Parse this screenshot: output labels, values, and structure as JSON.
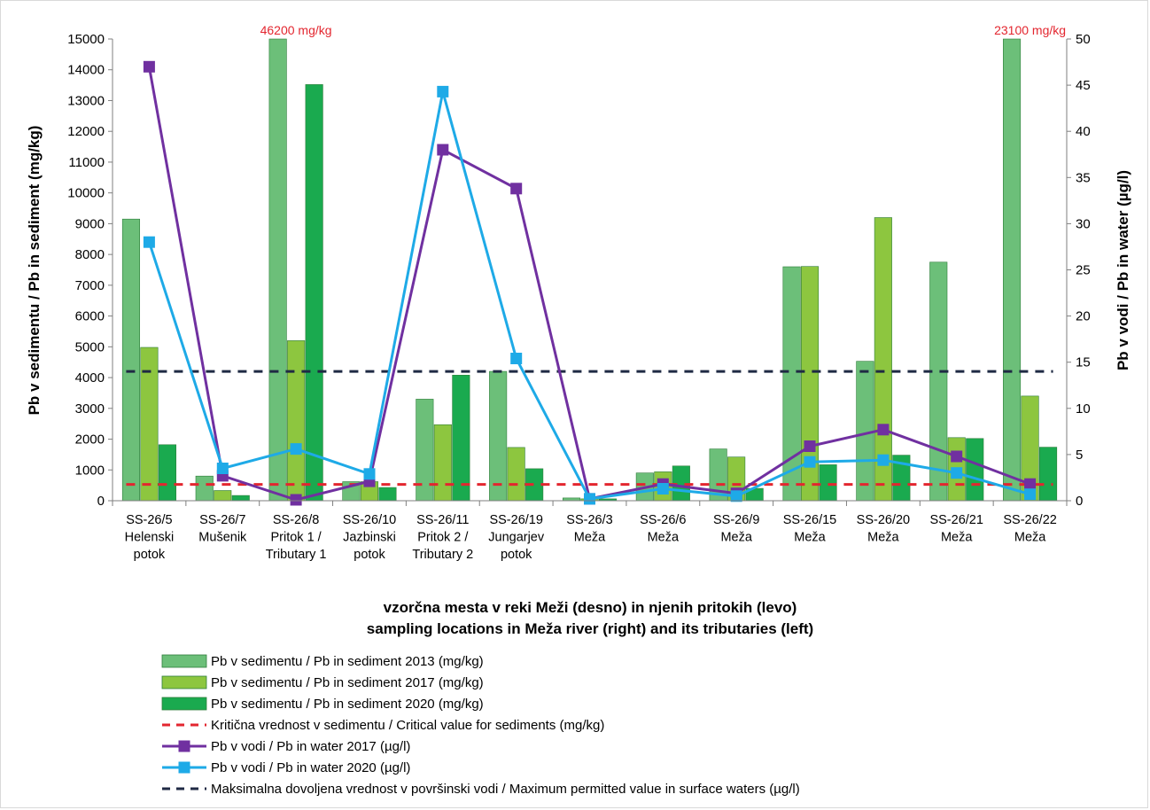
{
  "chart_data": {
    "type": "bar",
    "categories": [
      [
        "SS-26/5",
        "Helenski",
        "potok"
      ],
      [
        "SS-26/7",
        "Mušenik"
      ],
      [
        "SS-26/8",
        "Pritok 1 /",
        "Tributary 1"
      ],
      [
        "SS-26/10",
        "Jazbinski",
        "potok"
      ],
      [
        "SS-26/11",
        "Pritok 2 /",
        "Tributary 2"
      ],
      [
        "SS-26/19",
        "Jungarjev",
        "potok"
      ],
      [
        "SS-26/3",
        "Meža"
      ],
      [
        "SS-26/6",
        "Meža"
      ],
      [
        "SS-26/9",
        "Meža"
      ],
      [
        "SS-26/15",
        "Meža"
      ],
      [
        "SS-26/20",
        "Meža"
      ],
      [
        "SS-26/21",
        "Meža"
      ],
      [
        "SS-26/22",
        "Meža"
      ]
    ],
    "xlabel": [
      "vzorčna mesta v reki Meži (desno) in njenih pritokih (levo)",
      "sampling locations in Meža river (right) and its tributaries (left)"
    ],
    "ylabel": "Pb v sedimentu / Pb in sediment (mg/kg)",
    "y2label": "Pb v vodi / Pb in water (µg/l)",
    "ylim": [
      0,
      15000
    ],
    "y2lim": [
      0,
      50
    ],
    "yticks": [
      "0",
      "1000",
      "2000",
      "3000",
      "4000",
      "5000",
      "6000",
      "7000",
      "8000",
      "9000",
      "10000",
      "11000",
      "12000",
      "13000",
      "14000",
      "15000"
    ],
    "y2ticks": [
      "0",
      "5",
      "10",
      "15",
      "20",
      "25",
      "30",
      "35",
      "40",
      "45",
      "50"
    ],
    "bar_series": [
      {
        "name": "Pb v sedimentu / Pb in sediment 2013 (mg/kg)",
        "color": "#6cbf79",
        "values": [
          9150,
          800,
          46200,
          620,
          3300,
          4200,
          90,
          900,
          1680,
          7600,
          4530,
          7750,
          23100
        ]
      },
      {
        "name": "Pb v sedimentu / Pb in sediment 2017 (mg/kg)",
        "color": "#8dc63f",
        "values": [
          4980,
          330,
          5200,
          620,
          2470,
          1730,
          60,
          940,
          1420,
          7610,
          9200,
          2050,
          3400
        ]
      },
      {
        "name": "Pb v sedimentu / Pb in sediment 2020 (mg/kg)",
        "color": "#1aaa4f",
        "values": [
          1820,
          170,
          13520,
          430,
          4080,
          1040,
          60,
          1130,
          400,
          1170,
          1480,
          2020,
          1740
        ]
      }
    ],
    "line_series": [
      {
        "name": "Pb v vodi / Pb in water 2017 (µg/l)",
        "color": "#7030a0",
        "axis": "right",
        "values": [
          47,
          2.7,
          0.1,
          2.1,
          38,
          33.8,
          0.2,
          1.8,
          0.8,
          5.9,
          7.7,
          4.8,
          1.8
        ]
      },
      {
        "name": "Pb v vodi / Pb in water 2020 (µg/l)",
        "color": "#1eaae7",
        "axis": "right",
        "values": [
          28,
          3.5,
          5.6,
          2.9,
          44.3,
          15.4,
          0.2,
          1.3,
          0.5,
          4.2,
          4.4,
          3,
          0.7
        ]
      }
    ],
    "reference_lines": [
      {
        "name": "Kritična vrednost v sedimentu / Critical value for sediments (mg/kg)",
        "color": "#e3262f",
        "axis": "left",
        "value": 530
      },
      {
        "name": "Maksimalna dovoljena vrednost v površinski vodi / Maximum permitted value in surface waters (µg/l)",
        "color": "#1f2a44",
        "axis": "right",
        "value": 14
      }
    ],
    "annotations": [
      {
        "text": "46200 mg/kg",
        "category_index": 2
      },
      {
        "text": "23100 mg/kg",
        "category_index": 12
      }
    ],
    "legend": {
      "placement": "bottom",
      "entries": [
        {
          "label": "Pb v sedimentu / Pb in sediment 2013 (mg/kg)",
          "kind": "bar",
          "color": "#6cbf79"
        },
        {
          "label": "Pb v sedimentu / Pb in sediment 2017 (mg/kg)",
          "kind": "bar",
          "color": "#8dc63f"
        },
        {
          "label": "Pb v sedimentu / Pb in sediment 2020 (mg/kg)",
          "kind": "bar",
          "color": "#1aaa4f"
        },
        {
          "label": "Kritična vrednost v sedimentu / Critical value for sediments (mg/kg)",
          "kind": "dash",
          "color": "#e3262f"
        },
        {
          "label": "Pb v vodi / Pb in water 2017 (µg/l)",
          "kind": "line",
          "color": "#7030a0"
        },
        {
          "label": "Pb v vodi / Pb in water 2020 (µg/l)",
          "kind": "line",
          "color": "#1eaae7"
        },
        {
          "label": "Maksimalna dovoljena vrednost v površinski vodi / Maximum permitted value in surface waters (µg/l)",
          "kind": "dash",
          "color": "#1f2a44"
        }
      ]
    },
    "grid": false
  }
}
